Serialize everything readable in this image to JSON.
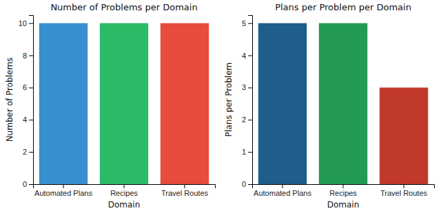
{
  "chart_data": [
    {
      "type": "bar",
      "title": "Number of Problems per Domain",
      "x_label": "Domain",
      "y_label": "Number of Problems",
      "categories": [
        "Automated Plans",
        "Recipes",
        "Travel Routes"
      ],
      "values": [
        10,
        10,
        10
      ],
      "colors": [
        "#3a8fd1",
        "#2dba66",
        "#e74c3c"
      ],
      "ylim": [
        0,
        10.5
      ],
      "yticks": [
        0,
        2,
        4,
        6,
        8,
        10
      ]
    },
    {
      "type": "bar",
      "title": "Plans per Problem per Domain",
      "x_label": "Domain",
      "y_label": "Plans per Problem",
      "categories": [
        "Automated Plans",
        "Recipes",
        "Travel Routes"
      ],
      "values": [
        5,
        5,
        3
      ],
      "colors": [
        "#1f5d8c",
        "#239b56",
        "#c0392b"
      ],
      "ylim": [
        0,
        5.25
      ],
      "yticks": [
        0,
        1,
        2,
        3,
        4,
        5
      ]
    }
  ]
}
